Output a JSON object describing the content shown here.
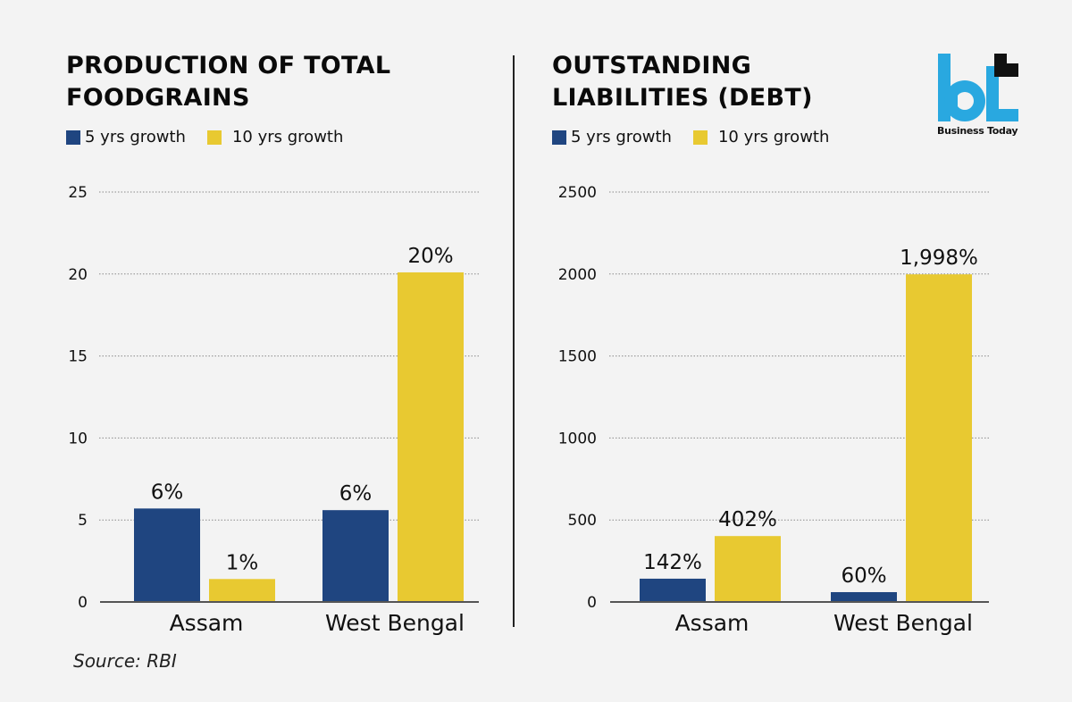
{
  "colors": {
    "five_yr": "#1f4580",
    "ten_yr": "#e8c931",
    "background": "#f3f3f3",
    "logo_blue": "#29a8e0"
  },
  "brand": {
    "name": "Business Today",
    "mark": "bt"
  },
  "source": "Source: RBI",
  "chart_data": [
    {
      "type": "bar",
      "title": "PRODUCTION OF TOTAL\nFOODGRAINS",
      "legend": [
        "5 yrs growth",
        "10 yrs growth"
      ],
      "legend_placement": "top-left",
      "categories": [
        "Assam",
        "West Bengal"
      ],
      "series": [
        {
          "name": "5 yrs growth",
          "values": [
            5.7,
            5.6
          ],
          "labels": [
            "6%",
            "6%"
          ]
        },
        {
          "name": "10 yrs growth",
          "values": [
            1.4,
            20.1
          ],
          "labels": [
            "1%",
            "20%"
          ]
        }
      ],
      "yticks": [
        "0",
        "5",
        "10",
        "15",
        "20",
        "25"
      ],
      "ylim": [
        0,
        25
      ],
      "grid": true,
      "xlabel": "",
      "ylabel": ""
    },
    {
      "type": "bar",
      "title": "OUTSTANDING\nLIABILITIES (DEBT)",
      "legend": [
        "5 yrs growth",
        "10 yrs growth"
      ],
      "legend_placement": "top-left",
      "categories": [
        "Assam",
        "West Bengal"
      ],
      "series": [
        {
          "name": "5 yrs growth",
          "values": [
            142,
            60
          ],
          "labels": [
            "142%",
            "60%"
          ]
        },
        {
          "name": "10 yrs growth",
          "values": [
            402,
            1998
          ],
          "labels": [
            "402%",
            "1,998%"
          ]
        }
      ],
      "yticks": [
        "0",
        "500",
        "1000",
        "1500",
        "2000",
        "2500"
      ],
      "ylim": [
        0,
        2500
      ],
      "grid": true,
      "xlabel": "",
      "ylabel": ""
    }
  ]
}
